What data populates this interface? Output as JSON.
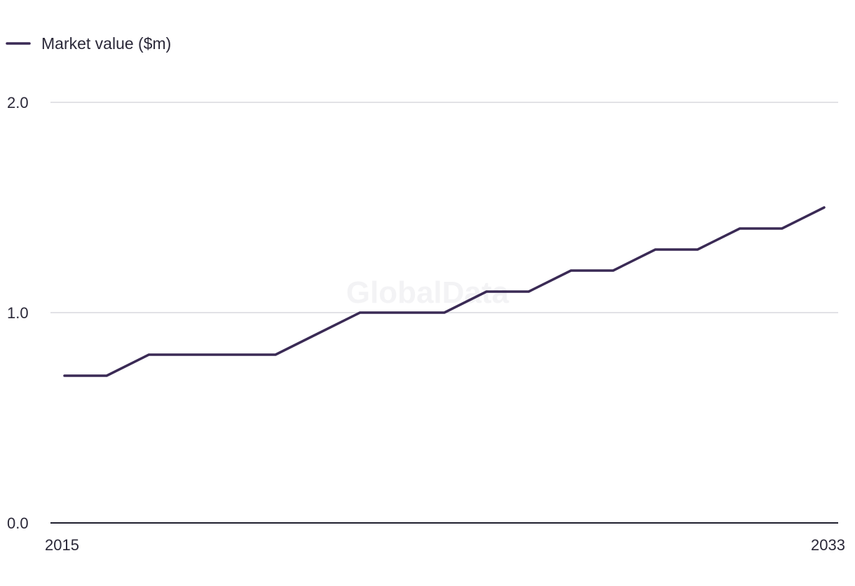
{
  "chart_data": {
    "type": "line",
    "series": [
      {
        "name": "Market value ($m)",
        "color": "#3a2a55",
        "x": [
          2015,
          2016,
          2017,
          2018,
          2019,
          2020,
          2021,
          2022,
          2023,
          2024,
          2025,
          2026,
          2027,
          2028,
          2029,
          2030,
          2031,
          2032,
          2033
        ],
        "values": [
          0.7,
          0.7,
          0.8,
          0.8,
          0.8,
          0.8,
          0.9,
          1.0,
          1.0,
          1.0,
          1.1,
          1.1,
          1.2,
          1.2,
          1.3,
          1.3,
          1.4,
          1.4,
          1.5
        ]
      }
    ],
    "x_tick_labels": [
      "2015",
      "2033"
    ],
    "y_ticks": [
      0,
      1,
      2
    ],
    "y_tick_labels": [
      "0.0",
      "1.0",
      "2.0"
    ],
    "ylim": [
      0,
      2
    ],
    "xlim": [
      2015,
      2033
    ],
    "grid": true,
    "legend": "top-left",
    "watermark": "GlobalData",
    "colors": {
      "line": "#3a2a55",
      "grid": "#d9d9de",
      "axis": "#1f1f2e"
    }
  }
}
